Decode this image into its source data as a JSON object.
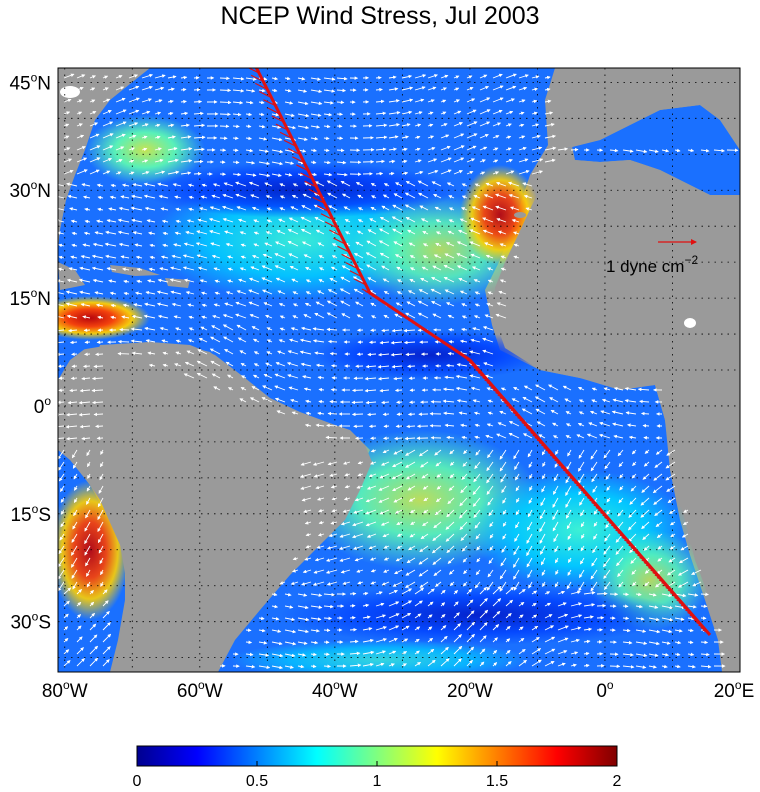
{
  "title": "NCEP Wind Stress, Jul 2003",
  "map": {
    "lon_range": [
      -81,
      20
    ],
    "lat_range": [
      -37,
      47
    ],
    "x_ticks": [
      {
        "value": -80,
        "deg": "80",
        "hemi": "W"
      },
      {
        "value": -60,
        "deg": "60",
        "hemi": "W"
      },
      {
        "value": -40,
        "deg": "40",
        "hemi": "W"
      },
      {
        "value": -20,
        "deg": "20",
        "hemi": "W"
      },
      {
        "value": 0,
        "deg": "0",
        "hemi": ""
      },
      {
        "value": 20,
        "deg": "20",
        "hemi": "E"
      }
    ],
    "y_ticks": [
      {
        "value": 45,
        "deg": "45",
        "hemi": "N"
      },
      {
        "value": 30,
        "deg": "30",
        "hemi": "N"
      },
      {
        "value": 15,
        "deg": "15",
        "hemi": "N"
      },
      {
        "value": 0,
        "deg": "0",
        "hemi": ""
      },
      {
        "value": -15,
        "deg": "15",
        "hemi": "S"
      },
      {
        "value": -30,
        "deg": "30",
        "hemi": "S"
      }
    ],
    "grid": "dotted",
    "land_color": "#9a9a9a",
    "vector_color": "#ffffff",
    "track_color": "#e01010",
    "reference_vector": {
      "label": "1 dyne cm",
      "exponent": "−2",
      "magnitude": 1
    }
  },
  "colorbar": {
    "min": 0,
    "max": 2,
    "tick_labels": [
      "0",
      "0.5",
      "1",
      "1.5",
      "2"
    ],
    "colormap": "jet"
  }
}
